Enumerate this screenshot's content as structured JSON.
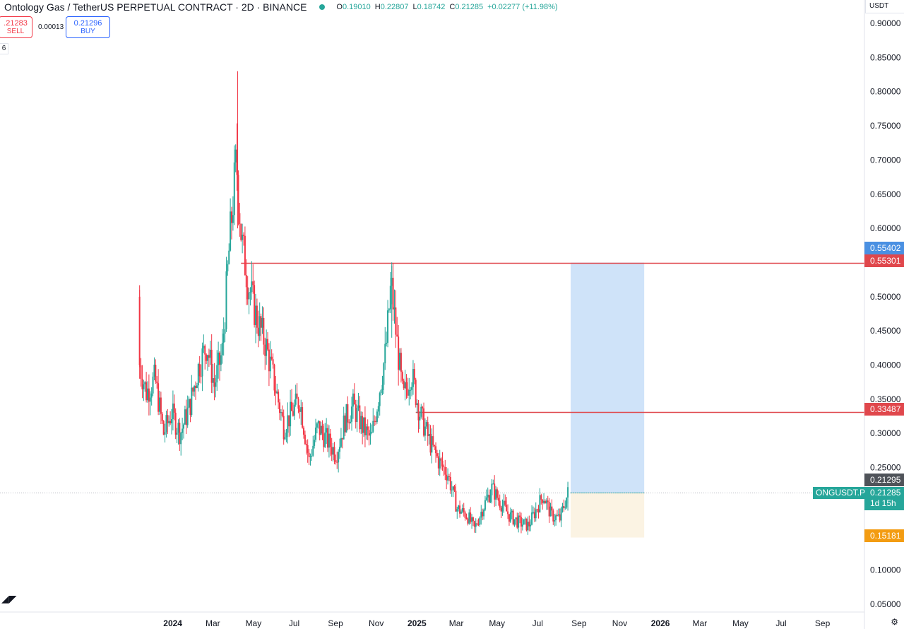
{
  "header": {
    "title": "Ontology Gas / TetherUS PERPETUAL CONTRACT · 2D · BINANCE",
    "ohlc": [
      {
        "key": "O",
        "value": "0.19010"
      },
      {
        "key": "H",
        "value": "0.22807"
      },
      {
        "key": "L",
        "value": "0.18742"
      },
      {
        "key": "C",
        "value": "0.21285"
      },
      {
        "key": "",
        "value": "+0.02277 (+11.98%)"
      }
    ]
  },
  "trade": {
    "sell_price": ".21283",
    "sell_label": "SELL",
    "spread": "0.00013",
    "buy_price": "0.21296",
    "buy_label": "BUY",
    "count": "6"
  },
  "price_tags": {
    "target_top": "0.55402",
    "resistance_top": "0.55301",
    "resistance_mid": "0.33487",
    "entry_high": "0.21295",
    "last": "0.21285",
    "countdown": "1d 15h",
    "stop": "0.15181",
    "symbol": "ONGUSDT.P"
  },
  "colors": {
    "up": "#26a69a",
    "down": "#f23645",
    "level_line": "#e0474c",
    "target_zone": "#cfe3f9",
    "stop_zone": "#fbf3e3",
    "target_tag": "#4a90e2",
    "stop_tag": "#f39c12",
    "dark_tag": "#4f5359"
  },
  "icons": {
    "logo": "tradingview-logo-icon",
    "settings": "gear-icon",
    "status": "market-open-dot-icon"
  },
  "chart_data": {
    "type": "candlestick",
    "currency": "USDT",
    "y_ticks": [
      "0.90000",
      "0.85000",
      "0.80000",
      "0.75000",
      "0.70000",
      "0.65000",
      "0.60000",
      "0.50000",
      "0.45000",
      "0.40000",
      "0.35000",
      "0.30000",
      "0.25000",
      "0.10000",
      "0.05000"
    ],
    "ylim": [
      0.05,
      0.9
    ],
    "x_ticks": [
      "2024",
      "Mar",
      "May",
      "Jul",
      "Sep",
      "Nov",
      "2025",
      "Mar",
      "May",
      "Jul",
      "Sep",
      "Nov",
      "2026",
      "Mar",
      "May",
      "Jul",
      "Sep"
    ],
    "x_start": "2023-11-01",
    "x_end": "2026-09-30",
    "horizontal_levels": [
      {
        "value": 0.55301,
        "from": "2024-04-25",
        "to": "2025-12-31"
      },
      {
        "value": 0.33487,
        "from": "2025-01-12",
        "to": "2025-12-31"
      }
    ],
    "position": {
      "type": "long",
      "from": "2025-08-29",
      "to": "2025-12-31",
      "entry": 0.21285,
      "target": 0.55402,
      "stop": 0.15181
    },
    "last_price": 0.21285,
    "anchors": [
      [
        "2023-11-25",
        0.4
      ],
      [
        "2023-12-05",
        0.36
      ],
      [
        "2023-12-18",
        0.38
      ],
      [
        "2023-12-31",
        0.3
      ],
      [
        "2024-01-12",
        0.33
      ],
      [
        "2024-01-25",
        0.3
      ],
      [
        "2024-02-08",
        0.34
      ],
      [
        "2024-02-22",
        0.4
      ],
      [
        "2024-03-05",
        0.43
      ],
      [
        "2024-03-16",
        0.37
      ],
      [
        "2024-03-28",
        0.42
      ],
      [
        "2024-04-08",
        0.58
      ],
      [
        "2024-04-18",
        0.7
      ],
      [
        "2024-04-26",
        0.58
      ],
      [
        "2024-05-06",
        0.52
      ],
      [
        "2024-05-18",
        0.47
      ],
      [
        "2024-06-01",
        0.43
      ],
      [
        "2024-06-15",
        0.37
      ],
      [
        "2024-06-28",
        0.31
      ],
      [
        "2024-07-10",
        0.33
      ],
      [
        "2024-07-22",
        0.35
      ],
      [
        "2024-08-05",
        0.26
      ],
      [
        "2024-08-18",
        0.31
      ],
      [
        "2024-09-01",
        0.29
      ],
      [
        "2024-09-15",
        0.27
      ],
      [
        "2024-09-28",
        0.32
      ],
      [
        "2024-10-10",
        0.34
      ],
      [
        "2024-10-24",
        0.31
      ],
      [
        "2024-11-06",
        0.29
      ],
      [
        "2024-11-18",
        0.36
      ],
      [
        "2024-11-28",
        0.42
      ],
      [
        "2024-12-06",
        0.52
      ],
      [
        "2024-12-14",
        0.44
      ],
      [
        "2024-12-24",
        0.35
      ],
      [
        "2025-01-05",
        0.39
      ],
      [
        "2025-01-18",
        0.33
      ],
      [
        "2025-02-01",
        0.29
      ],
      [
        "2025-02-15",
        0.26
      ],
      [
        "2025-03-01",
        0.24
      ],
      [
        "2025-03-15",
        0.19
      ],
      [
        "2025-03-30",
        0.18
      ],
      [
        "2025-04-10",
        0.16
      ],
      [
        "2025-04-22",
        0.19
      ],
      [
        "2025-05-06",
        0.22
      ],
      [
        "2025-05-18",
        0.2
      ],
      [
        "2025-06-01",
        0.18
      ],
      [
        "2025-06-15",
        0.17
      ],
      [
        "2025-06-30",
        0.165
      ],
      [
        "2025-07-12",
        0.19
      ],
      [
        "2025-07-22",
        0.21
      ],
      [
        "2025-08-03",
        0.18
      ],
      [
        "2025-08-16",
        0.175
      ],
      [
        "2025-08-28",
        0.213
      ]
    ]
  }
}
